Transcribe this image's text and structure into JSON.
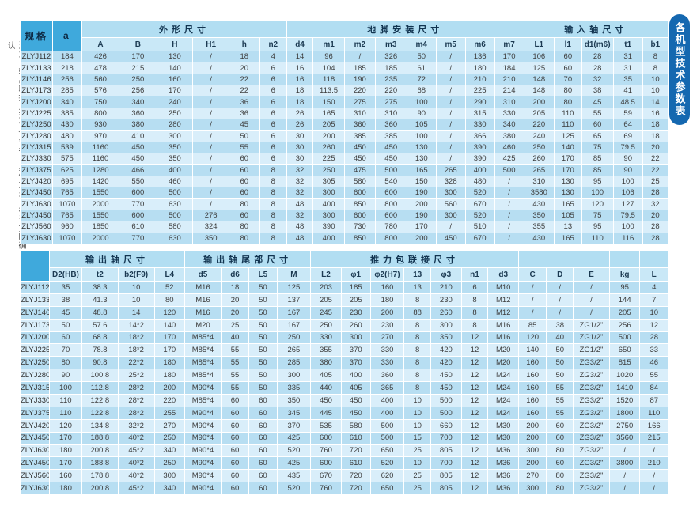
{
  "side_note": "注意：输出联接方式仅供参考，具体方式可在订货时确认",
  "side_tab_label": "各机型技术参数表",
  "colors": {
    "tab_bg": "#1568b0",
    "header_bg": "#3fa9dc",
    "group_bg": "#b2def2",
    "sub_bg": "#c9e8f7",
    "row_dark": "#b7def2",
    "row_light": "#d9eefa"
  },
  "tables": [
    {
      "name": "spec-table-top",
      "corner": [
        "规格",
        "a"
      ],
      "groups": [
        {
          "label": "外形尺寸",
          "span": 6
        },
        {
          "label": "地脚安装尺寸",
          "span": 8
        },
        {
          "label": "输入轴尺寸",
          "span": 5
        }
      ],
      "columns": [
        "A",
        "B",
        "H",
        "H1",
        "h",
        "n2",
        "d4",
        "m1",
        "m2",
        "m3",
        "m4",
        "m5",
        "m6",
        "m7",
        "L1",
        "l1",
        "d1(m6)",
        "t1",
        "b1"
      ],
      "rows": [
        {
          "model": "ZLYJ112",
          "values": [
            "184",
            "426",
            "170",
            "130",
            "/",
            "18",
            "4",
            "14",
            "96",
            "/",
            "326",
            "50",
            "/",
            "136",
            "170",
            "106",
            "60",
            "28",
            "31",
            "8"
          ]
        },
        {
          "model": "ZLYJ133",
          "values": [
            "218",
            "478",
            "215",
            "140",
            "/",
            "20",
            "6",
            "16",
            "104",
            "185",
            "185",
            "61",
            "/",
            "180",
            "184",
            "125",
            "60",
            "28",
            "31",
            "8"
          ]
        },
        {
          "model": "ZLYJ146",
          "values": [
            "256",
            "560",
            "250",
            "160",
            "/",
            "22",
            "6",
            "16",
            "118",
            "190",
            "235",
            "72",
            "/",
            "210",
            "210",
            "148",
            "70",
            "32",
            "35",
            "10"
          ]
        },
        {
          "model": "ZLYJ173",
          "values": [
            "285",
            "576",
            "256",
            "170",
            "/",
            "22",
            "6",
            "18",
            "113.5",
            "220",
            "220",
            "68",
            "/",
            "225",
            "214",
            "148",
            "80",
            "38",
            "41",
            "10"
          ]
        },
        {
          "model": "ZLYJ200",
          "values": [
            "340",
            "750",
            "340",
            "240",
            "/",
            "36",
            "6",
            "18",
            "150",
            "275",
            "275",
            "100",
            "/",
            "290",
            "310",
            "200",
            "80",
            "45",
            "48.5",
            "14"
          ]
        },
        {
          "model": "ZLYJ225",
          "values": [
            "385",
            "800",
            "360",
            "250",
            "/",
            "36",
            "6",
            "26",
            "165",
            "310",
            "310",
            "90",
            "/",
            "315",
            "330",
            "205",
            "110",
            "55",
            "59",
            "16"
          ]
        },
        {
          "model": "ZLYJ250",
          "values": [
            "430",
            "930",
            "380",
            "280",
            "/",
            "45",
            "6",
            "26",
            "205",
            "360",
            "360",
            "105",
            "/",
            "330",
            "340",
            "220",
            "110",
            "60",
            "64",
            "18"
          ]
        },
        {
          "model": "ZLYJ280",
          "values": [
            "480",
            "970",
            "410",
            "300",
            "/",
            "50",
            "6",
            "30",
            "200",
            "385",
            "385",
            "100",
            "/",
            "366",
            "380",
            "240",
            "125",
            "65",
            "69",
            "18"
          ]
        },
        {
          "model": "ZLYJ315",
          "values": [
            "539",
            "1160",
            "450",
            "350",
            "/",
            "55",
            "6",
            "30",
            "260",
            "450",
            "450",
            "130",
            "/",
            "390",
            "460",
            "250",
            "140",
            "75",
            "79.5",
            "20"
          ]
        },
        {
          "model": "ZLYJ330",
          "values": [
            "575",
            "1160",
            "450",
            "350",
            "/",
            "60",
            "6",
            "30",
            "225",
            "450",
            "450",
            "130",
            "/",
            "390",
            "425",
            "260",
            "170",
            "85",
            "90",
            "22"
          ]
        },
        {
          "model": "ZLYJ375",
          "values": [
            "625",
            "1280",
            "466",
            "400",
            "/",
            "60",
            "8",
            "32",
            "250",
            "475",
            "500",
            "165",
            "265",
            "400",
            "500",
            "265",
            "170",
            "85",
            "90",
            "22"
          ]
        },
        {
          "model": "ZLYJ420",
          "values": [
            "695",
            "1420",
            "550",
            "460",
            "/",
            "60",
            "8",
            "32",
            "305",
            "580",
            "540",
            "150",
            "328",
            "480",
            "/",
            "310",
            "130",
            "95",
            "100",
            "25"
          ]
        },
        {
          "model": "ZLYJ450",
          "values": [
            "765",
            "1550",
            "600",
            "500",
            "/",
            "60",
            "8",
            "32",
            "300",
            "600",
            "600",
            "190",
            "300",
            "520",
            "/",
            "3580",
            "130",
            "100",
            "106",
            "28"
          ]
        },
        {
          "model": "ZLYJ630",
          "values": [
            "1070",
            "2000",
            "770",
            "630",
            "/",
            "80",
            "8",
            "48",
            "400",
            "850",
            "800",
            "200",
            "560",
            "670",
            "/",
            "430",
            "165",
            "120",
            "127",
            "32"
          ]
        },
        {
          "model": "ZLYJ450",
          "values": [
            "765",
            "1550",
            "600",
            "500",
            "276",
            "60",
            "8",
            "32",
            "300",
            "600",
            "600",
            "190",
            "300",
            "520",
            "/",
            "350",
            "105",
            "75",
            "79.5",
            "20"
          ]
        },
        {
          "model": "ZLYJ560",
          "values": [
            "960",
            "1850",
            "610",
            "580",
            "324",
            "80",
            "8",
            "48",
            "390",
            "730",
            "780",
            "170",
            "/",
            "510",
            "/",
            "355",
            "13",
            "95",
            "100",
            "28"
          ]
        },
        {
          "model": "ZLYJ630",
          "values": [
            "1070",
            "2000",
            "770",
            "630",
            "350",
            "80",
            "8",
            "48",
            "400",
            "850",
            "800",
            "200",
            "450",
            "670",
            "/",
            "430",
            "165",
            "110",
            "116",
            "28"
          ]
        }
      ]
    },
    {
      "name": "spec-table-bottom",
      "corner": [
        ""
      ],
      "groups": [
        {
          "label": "输出轴尺寸",
          "span": 4
        },
        {
          "label": "输出轴尾部尺寸",
          "span": 4
        },
        {
          "label": "推力包联接尺寸",
          "span": 7
        },
        {
          "label": "",
          "span": 3
        },
        {
          "label": "",
          "span": 1
        },
        {
          "label": "",
          "span": 1
        }
      ],
      "columns": [
        "D2(HB)",
        "t2",
        "b2(F9)",
        "L4",
        "d5",
        "d6",
        "L5",
        "M",
        "L2",
        "φ1",
        "φ2(H7)",
        "13",
        "φ3",
        "n1",
        "d3",
        "C",
        "D",
        "E",
        "kg",
        "L"
      ],
      "rows": [
        {
          "model": "ZLYJ112",
          "values": [
            "35",
            "38.3",
            "10",
            "52",
            "M16",
            "18",
            "50",
            "125",
            "203",
            "185",
            "160",
            "13",
            "210",
            "6",
            "M10",
            "/",
            "/",
            "/",
            "95",
            "4"
          ]
        },
        {
          "model": "ZLYJ133",
          "values": [
            "38",
            "41.3",
            "10",
            "80",
            "M16",
            "20",
            "50",
            "137",
            "205",
            "205",
            "180",
            "8",
            "230",
            "8",
            "M12",
            "/",
            "/",
            "/",
            "144",
            "7"
          ]
        },
        {
          "model": "ZLYJ146",
          "values": [
            "45",
            "48.8",
            "14",
            "120",
            "M16",
            "20",
            "50",
            "167",
            "245",
            "230",
            "200",
            "88",
            "260",
            "8",
            "M12",
            "/",
            "/",
            "/",
            "205",
            "10"
          ]
        },
        {
          "model": "ZLYJ173",
          "values": [
            "50",
            "57.6",
            "14*2",
            "140",
            "M20",
            "25",
            "50",
            "167",
            "250",
            "260",
            "230",
            "8",
            "300",
            "8",
            "M16",
            "85",
            "38",
            "ZG1/2\"",
            "256",
            "12"
          ]
        },
        {
          "model": "ZLYJ200",
          "values": [
            "60",
            "68.8",
            "18*2",
            "170",
            "M85*4",
            "40",
            "50",
            "250",
            "330",
            "300",
            "270",
            "8",
            "350",
            "12",
            "M16",
            "120",
            "40",
            "ZG1/2\"",
            "500",
            "28"
          ]
        },
        {
          "model": "ZLYJ225",
          "values": [
            "70",
            "78.8",
            "18*2",
            "170",
            "M85*4",
            "55",
            "50",
            "265",
            "355",
            "370",
            "330",
            "8",
            "420",
            "12",
            "M20",
            "140",
            "50",
            "ZG1/2\"",
            "650",
            "33"
          ]
        },
        {
          "model": "ZLYJ250",
          "values": [
            "80",
            "90.8",
            "22*2",
            "180",
            "M85*4",
            "55",
            "50",
            "285",
            "380",
            "370",
            "330",
            "8",
            "420",
            "12",
            "M20",
            "160",
            "50",
            "ZG3/2\"",
            "815",
            "46"
          ]
        },
        {
          "model": "ZLYJ280",
          "values": [
            "90",
            "100.8",
            "25*2",
            "180",
            "M85*4",
            "55",
            "50",
            "300",
            "405",
            "400",
            "360",
            "8",
            "450",
            "12",
            "M24",
            "160",
            "50",
            "ZG3/2\"",
            "1020",
            "55"
          ]
        },
        {
          "model": "ZLYJ315",
          "values": [
            "100",
            "112.8",
            "28*2",
            "200",
            "M90*4",
            "55",
            "50",
            "335",
            "440",
            "405",
            "365",
            "8",
            "450",
            "12",
            "M24",
            "160",
            "55",
            "ZG3/2\"",
            "1410",
            "84"
          ]
        },
        {
          "model": "ZLYJ330",
          "values": [
            "110",
            "122.8",
            "28*2",
            "220",
            "M85*4",
            "60",
            "60",
            "350",
            "450",
            "450",
            "400",
            "10",
            "500",
            "12",
            "M24",
            "160",
            "55",
            "ZG3/2\"",
            "1520",
            "87"
          ]
        },
        {
          "model": "ZLYJ375",
          "values": [
            "110",
            "122.8",
            "28*2",
            "255",
            "M90*4",
            "60",
            "60",
            "345",
            "445",
            "450",
            "400",
            "10",
            "500",
            "12",
            "M24",
            "160",
            "55",
            "ZG3/2\"",
            "1800",
            "110"
          ]
        },
        {
          "model": "ZLYJ420",
          "values": [
            "120",
            "134.8",
            "32*2",
            "270",
            "M90*4",
            "60",
            "60",
            "370",
            "535",
            "580",
            "500",
            "10",
            "660",
            "12",
            "M30",
            "200",
            "60",
            "ZG3/2\"",
            "2750",
            "166"
          ]
        },
        {
          "model": "ZLYJ450",
          "values": [
            "170",
            "188.8",
            "40*2",
            "250",
            "M90*4",
            "60",
            "60",
            "425",
            "600",
            "610",
            "500",
            "15",
            "700",
            "12",
            "M30",
            "200",
            "60",
            "ZG3/2\"",
            "3560",
            "215"
          ]
        },
        {
          "model": "ZLYJ630",
          "values": [
            "180",
            "200.8",
            "45*2",
            "340",
            "M90*4",
            "60",
            "60",
            "520",
            "760",
            "720",
            "650",
            "25",
            "805",
            "12",
            "M36",
            "300",
            "80",
            "ZG3/2\"",
            "/",
            "/"
          ]
        },
        {
          "model": "ZLYJ450",
          "values": [
            "170",
            "188.8",
            "40*2",
            "250",
            "M90*4",
            "60",
            "60",
            "425",
            "600",
            "610",
            "520",
            "10",
            "700",
            "12",
            "M36",
            "200",
            "60",
            "ZG3/2\"",
            "3800",
            "210"
          ]
        },
        {
          "model": "ZLYJ560",
          "values": [
            "160",
            "178.8",
            "40*2",
            "300",
            "M90*4",
            "60",
            "60",
            "435",
            "670",
            "720",
            "620",
            "25",
            "805",
            "12",
            "M36",
            "270",
            "80",
            "ZG3/2\"",
            "/",
            "/"
          ]
        },
        {
          "model": "ZLYJ630",
          "values": [
            "180",
            "200.8",
            "45*2",
            "340",
            "M90*4",
            "60",
            "60",
            "520",
            "760",
            "720",
            "650",
            "25",
            "805",
            "12",
            "M36",
            "300",
            "80",
            "ZG3/2\"",
            "/",
            "/"
          ]
        }
      ]
    }
  ]
}
